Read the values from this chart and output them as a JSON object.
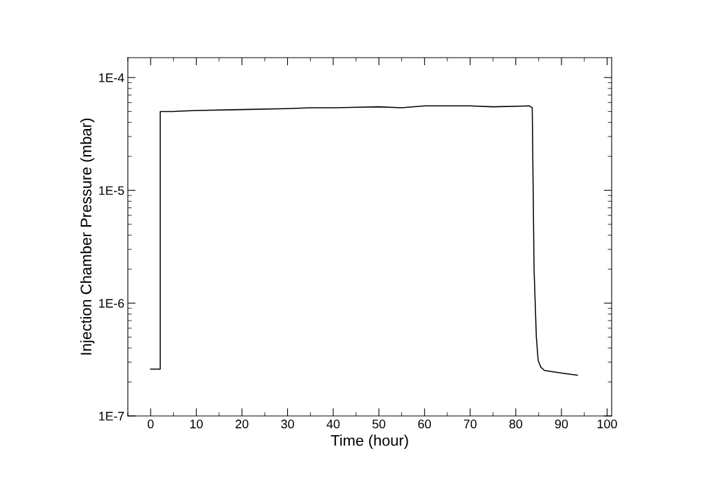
{
  "chart_data": {
    "type": "line",
    "xlabel": "Time (hour)",
    "ylabel": "Injection Chamber Pressure (mbar)",
    "log": "y",
    "grid": false,
    "marker": "none",
    "line_style": "solid",
    "xlim": [
      -5,
      101
    ],
    "xticks": [
      0,
      10,
      20,
      30,
      40,
      50,
      60,
      70,
      80,
      90,
      100
    ],
    "ylim": [
      1e-07,
      0.00015
    ],
    "yticks": [
      {
        "value": 1e-07,
        "label": "1E-7"
      },
      {
        "value": 1e-06,
        "label": "1E-6"
      },
      {
        "value": 1e-05,
        "label": "1E-5"
      },
      {
        "value": 0.0001,
        "label": "1E-4"
      }
    ],
    "series": [
      {
        "color": "#000000",
        "x": [
          0,
          2.1,
          2.1,
          5,
          10,
          20,
          30,
          35,
          40,
          50,
          55,
          60,
          70,
          75,
          83,
          83.6,
          84,
          84.5,
          84.9,
          85.5,
          86.3,
          90,
          93.5
        ],
        "values": [
          2.6e-07,
          2.6e-07,
          5e-05,
          5e-05,
          5.1e-05,
          5.2e-05,
          5.3e-05,
          5.4e-05,
          5.4e-05,
          5.5e-05,
          5.4e-05,
          5.6e-05,
          5.6e-05,
          5.5e-05,
          5.6e-05,
          5.4e-05,
          2e-06,
          5e-07,
          3.1e-07,
          2.7e-07,
          2.53e-07,
          2.4e-07,
          2.3e-07
        ]
      }
    ]
  }
}
